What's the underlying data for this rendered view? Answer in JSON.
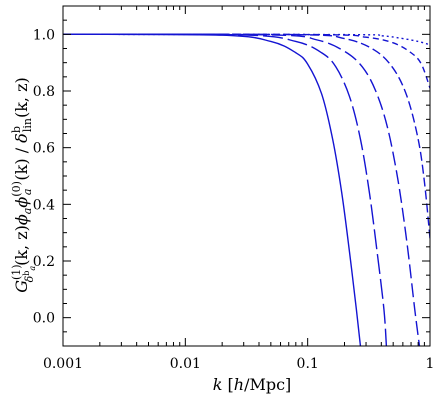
{
  "chart_data": {
    "type": "line",
    "xscale": "log",
    "xlim": [
      0.001,
      1.0
    ],
    "ylim": [
      -0.1,
      1.1
    ],
    "grid": false,
    "legend": "none",
    "line_color": "#1414d2",
    "x_ticks": [
      {
        "value": 0.001,
        "label": "0.001"
      },
      {
        "value": 0.01,
        "label": "0.01"
      },
      {
        "value": 0.1,
        "label": "0.1"
      },
      {
        "value": 1.0,
        "label": "1"
      }
    ],
    "y_ticks": [
      {
        "value": 0.0,
        "label": "0.0"
      },
      {
        "value": 0.2,
        "label": "0.2"
      },
      {
        "value": 0.4,
        "label": "0.4"
      },
      {
        "value": 0.6,
        "label": "0.6"
      },
      {
        "value": 0.8,
        "label": "0.8"
      },
      {
        "value": 1.0,
        "label": "1.0"
      }
    ],
    "xlabel": {
      "var": "k",
      "unit_open": " [",
      "unit_h": "h",
      "unit_rest": "/Mpc]"
    },
    "ylabel": {
      "G": "G",
      "sup": "(1)",
      "sub": "δ",
      "sub_sup": "b",
      "sub_sub": "a",
      "args1": "(k, z)",
      "phi1": "ϕ",
      "phi1_sub": "a",
      "phi2": "ϕ",
      "phi2_sup": "(0)",
      "phi2_sub": "a",
      "args2": "(k)",
      "slash": " / ",
      "delta": "δ",
      "delta_sup": "b",
      "delta_sub": "lin",
      "args3": "(k, z)"
    },
    "series": [
      {
        "style": "solid",
        "x": [
          0.001,
          0.02,
          0.05,
          0.08,
          0.1,
          0.13,
          0.16,
          0.19,
          0.22,
          0.25,
          0.27
        ],
        "y": [
          1.0,
          0.997,
          0.975,
          0.935,
          0.895,
          0.79,
          0.63,
          0.44,
          0.23,
          0.03,
          -0.1
        ]
      },
      {
        "style": "longdash",
        "x": [
          0.001,
          0.03,
          0.08,
          0.13,
          0.17,
          0.22,
          0.27,
          0.32,
          0.37,
          0.42,
          0.44
        ],
        "y": [
          1.0,
          0.998,
          0.975,
          0.935,
          0.885,
          0.78,
          0.63,
          0.44,
          0.23,
          0.03,
          -0.1
        ]
      },
      {
        "style": "dash",
        "x": [
          0.001,
          0.05,
          0.12,
          0.2,
          0.28,
          0.36,
          0.45,
          0.55,
          0.65,
          0.75,
          0.82
        ],
        "y": [
          1.0,
          0.998,
          0.98,
          0.94,
          0.885,
          0.8,
          0.67,
          0.48,
          0.26,
          0.03,
          -0.1
        ]
      },
      {
        "style": "shortdash",
        "x": [
          0.001,
          0.08,
          0.2,
          0.35,
          0.5,
          0.65,
          0.8,
          0.9,
          1.0
        ],
        "y": [
          1.0,
          0.999,
          0.985,
          0.945,
          0.88,
          0.78,
          0.63,
          0.48,
          0.28
        ]
      },
      {
        "style": "finedash",
        "x": [
          0.001,
          0.12,
          0.3,
          0.5,
          0.7,
          0.85,
          1.0
        ],
        "y": [
          1.0,
          0.999,
          0.99,
          0.97,
          0.935,
          0.895,
          0.81
        ]
      },
      {
        "style": "dotted",
        "x": [
          0.001,
          0.2,
          0.4,
          0.6,
          0.8,
          1.0
        ],
        "y": [
          1.0,
          0.999,
          0.995,
          0.985,
          0.975,
          0.963
        ]
      }
    ]
  }
}
